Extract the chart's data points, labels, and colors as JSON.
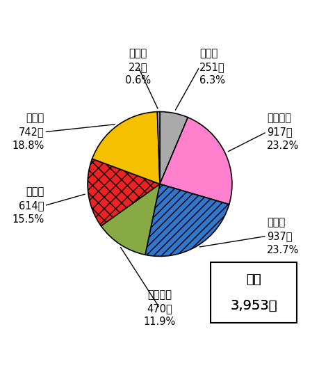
{
  "segments": [
    {
      "label": "その他",
      "count": "251件",
      "pct": "6.3%",
      "value": 251,
      "color": "#aaaaaa",
      "hatch": null
    },
    {
      "label": "日本国籍",
      "count": "917件",
      "pct": "23.2%",
      "value": 917,
      "color": "#ff80cc",
      "hatch": null
    },
    {
      "label": "米国籍",
      "count": "937件",
      "pct": "23.7%",
      "value": 937,
      "color": "#3377cc",
      "hatch": "///"
    },
    {
      "label": "欧州国籍",
      "count": "470件",
      "pct": "11.9%",
      "value": 470,
      "color": "#88aa44",
      "hatch": null
    },
    {
      "label": "中国籍",
      "count": "614件",
      "pct": "15.5%",
      "value": 614,
      "color": "#ee2222",
      "hatch": "xx"
    },
    {
      "label": "韓国籍",
      "count": "742件",
      "pct": "18.8%",
      "value": 742,
      "color": "#f5c000",
      "hatch": null
    },
    {
      "label": "台湾籍",
      "count": "22件",
      "pct": "0.6%",
      "value": 22,
      "color": "#bbbbbb",
      "hatch": null
    }
  ],
  "total_label": "合計",
  "total_value": "3,953件",
  "startangle": 90,
  "figsize": [
    4.6,
    5.29
  ],
  "dpi": 100,
  "background_color": "#ffffff",
  "text_color": "#000000",
  "fontsize_label": 10.5,
  "fontsize_total_label": 13,
  "fontsize_total_value": 14
}
